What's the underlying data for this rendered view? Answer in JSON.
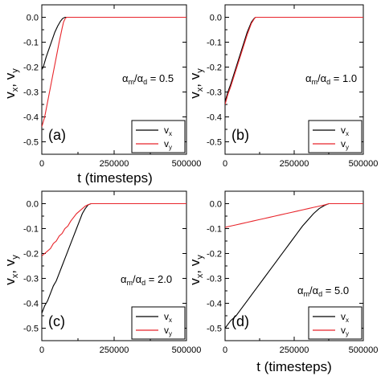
{
  "figure": {
    "xlabel": "t (timesteps)",
    "ylabel_main": "v",
    "ylabel_sub_x": "x",
    "ylabel_sep": ", ",
    "ylabel_sub_y": "y"
  },
  "chart_data": [
    {
      "type": "line",
      "panel_label": "(a)",
      "annotation": {
        "alpha_m": "α",
        "sub_m": "m",
        "slash": "/",
        "alpha_d": "α",
        "sub_d": "d",
        "value": " = 0.5"
      },
      "xlim": [
        0,
        500000
      ],
      "ylim": [
        -0.55,
        0.05
      ],
      "xticks": [
        0,
        250000,
        500000
      ],
      "xtick_labels": [
        "0",
        "250000",
        "500000"
      ],
      "yticks": [
        0.0,
        -0.1,
        -0.2,
        -0.3,
        -0.4,
        -0.5
      ],
      "ytick_labels": [
        "0.0",
        "-0.1",
        "-0.2",
        "-0.3",
        "-0.4",
        "-0.5"
      ],
      "legend": {
        "position": "bottom-right",
        "entries": [
          {
            "name": "v",
            "sub": "x",
            "color": "#000000"
          },
          {
            "name": "v",
            "sub": "y",
            "color": "#e8252b"
          }
        ]
      },
      "series": [
        {
          "name": "vx",
          "color": "#000000",
          "x": [
            0,
            5000,
            15000,
            30000,
            45000,
            55000,
            65000,
            72000,
            80000,
            500000
          ],
          "y": [
            -0.21,
            -0.2,
            -0.16,
            -0.11,
            -0.06,
            -0.035,
            -0.015,
            -0.005,
            0.0,
            0.0
          ]
        },
        {
          "name": "vy",
          "color": "#e8252b",
          "x": [
            0,
            10000,
            20000,
            30000,
            40000,
            50000,
            60000,
            70000,
            75000,
            80000,
            85000,
            500000
          ],
          "y": [
            -0.44,
            -0.4,
            -0.34,
            -0.28,
            -0.22,
            -0.16,
            -0.1,
            -0.045,
            -0.02,
            -0.007,
            0.0,
            0.0
          ]
        }
      ]
    },
    {
      "type": "line",
      "panel_label": "(b)",
      "annotation": {
        "alpha_m": "α",
        "sub_m": "m",
        "slash": "/",
        "alpha_d": "α",
        "sub_d": "d",
        "value": " = 1.0"
      },
      "xlim": [
        0,
        500000
      ],
      "ylim": [
        -0.55,
        0.05
      ],
      "xticks": [
        0,
        250000,
        500000
      ],
      "xtick_labels": [
        "0",
        "250000",
        "500000"
      ],
      "yticks": [
        0.0,
        -0.1,
        -0.2,
        -0.3,
        -0.4,
        -0.5
      ],
      "ytick_labels": [
        "0.0",
        "-0.1",
        "-0.2",
        "-0.3",
        "-0.4",
        "-0.5"
      ],
      "legend": {
        "position": "bottom-right",
        "entries": [
          {
            "name": "v",
            "sub": "x",
            "color": "#000000"
          },
          {
            "name": "v",
            "sub": "y",
            "color": "#e8252b"
          }
        ]
      },
      "series": [
        {
          "name": "vx",
          "color": "#000000",
          "x": [
            0,
            10000,
            20000,
            40000,
            60000,
            80000,
            95000,
            105000,
            110000,
            500000
          ],
          "y": [
            -0.34,
            -0.3,
            -0.27,
            -0.2,
            -0.13,
            -0.06,
            -0.02,
            -0.005,
            0.0,
            0.0
          ]
        },
        {
          "name": "vy",
          "color": "#e8252b",
          "x": [
            0,
            10000,
            20000,
            40000,
            60000,
            80000,
            95000,
            105000,
            110000,
            500000
          ],
          "y": [
            -0.35,
            -0.31,
            -0.28,
            -0.21,
            -0.14,
            -0.07,
            -0.025,
            -0.007,
            0.0,
            0.0
          ]
        }
      ]
    },
    {
      "type": "line",
      "panel_label": "(c)",
      "annotation": {
        "alpha_m": "α",
        "sub_m": "m",
        "slash": "/",
        "alpha_d": "α",
        "sub_d": "d",
        "value": " = 2.0"
      },
      "xlim": [
        0,
        500000
      ],
      "ylim": [
        -0.55,
        0.05
      ],
      "xticks": [
        0,
        250000,
        500000
      ],
      "xtick_labels": [
        "0",
        "250000",
        "500000"
      ],
      "yticks": [
        0.0,
        -0.1,
        -0.2,
        -0.3,
        -0.4,
        -0.5
      ],
      "ytick_labels": [
        "0.0",
        "-0.1",
        "-0.2",
        "-0.3",
        "-0.4",
        "-0.5"
      ],
      "legend": {
        "position": "bottom-right",
        "entries": [
          {
            "name": "v",
            "sub": "x",
            "color": "#000000"
          },
          {
            "name": "v",
            "sub": "y",
            "color": "#e8252b"
          }
        ]
      },
      "series": [
        {
          "name": "vx",
          "color": "#000000",
          "x": [
            0,
            10000,
            20000,
            30000,
            40000,
            50000,
            60000,
            70000,
            80000,
            90000,
            100000,
            110000,
            120000,
            130000,
            140000,
            150000,
            160000,
            170000,
            500000
          ],
          "y": [
            -0.44,
            -0.41,
            -0.39,
            -0.36,
            -0.33,
            -0.31,
            -0.28,
            -0.25,
            -0.22,
            -0.19,
            -0.16,
            -0.13,
            -0.1,
            -0.07,
            -0.04,
            -0.02,
            -0.005,
            0.0,
            0.0
          ]
        },
        {
          "name": "vy",
          "color": "#e8252b",
          "x": [
            0,
            10000,
            20000,
            30000,
            40000,
            50000,
            60000,
            70000,
            80000,
            90000,
            100000,
            110000,
            120000,
            130000,
            140000,
            150000,
            160000,
            170000,
            500000
          ],
          "y": [
            -0.21,
            -0.2,
            -0.19,
            -0.18,
            -0.16,
            -0.15,
            -0.13,
            -0.12,
            -0.1,
            -0.09,
            -0.07,
            -0.055,
            -0.04,
            -0.03,
            -0.02,
            -0.01,
            -0.004,
            0.0,
            0.0
          ]
        }
      ]
    },
    {
      "type": "line",
      "panel_label": "(d)",
      "annotation": {
        "alpha_m": "α",
        "sub_m": "m",
        "slash": "/",
        "alpha_d": "α",
        "sub_d": "d",
        "value": " = 5.0"
      },
      "xlim": [
        0,
        500000
      ],
      "ylim": [
        -0.55,
        0.05
      ],
      "xticks": [
        0,
        250000,
        500000
      ],
      "xtick_labels": [
        "0",
        "250000",
        "500000"
      ],
      "yticks": [
        0.0,
        -0.1,
        -0.2,
        -0.3,
        -0.4,
        -0.5
      ],
      "ytick_labels": [
        "0.0",
        "-0.1",
        "-0.2",
        "-0.3",
        "-0.4",
        "-0.5"
      ],
      "legend": {
        "position": "bottom-right",
        "entries": [
          {
            "name": "v",
            "sub": "x",
            "color": "#000000"
          },
          {
            "name": "v",
            "sub": "y",
            "color": "#e8252b"
          }
        ]
      },
      "series": [
        {
          "name": "vx",
          "color": "#000000",
          "x": [
            0,
            20000,
            40000,
            60000,
            80000,
            100000,
            120000,
            140000,
            160000,
            180000,
            200000,
            220000,
            240000,
            260000,
            280000,
            300000,
            320000,
            340000,
            360000,
            375000,
            500000
          ],
          "y": [
            -0.5,
            -0.47,
            -0.45,
            -0.42,
            -0.39,
            -0.36,
            -0.33,
            -0.3,
            -0.27,
            -0.24,
            -0.21,
            -0.18,
            -0.15,
            -0.12,
            -0.09,
            -0.065,
            -0.04,
            -0.02,
            -0.007,
            0.0,
            0.0
          ]
        },
        {
          "name": "vy",
          "color": "#e8252b",
          "x": [
            0,
            20000,
            40000,
            60000,
            80000,
            100000,
            120000,
            140000,
            160000,
            180000,
            200000,
            220000,
            240000,
            260000,
            280000,
            300000,
            320000,
            340000,
            360000,
            375000,
            500000
          ],
          "y": [
            -0.095,
            -0.09,
            -0.085,
            -0.08,
            -0.075,
            -0.07,
            -0.065,
            -0.06,
            -0.055,
            -0.05,
            -0.045,
            -0.04,
            -0.035,
            -0.03,
            -0.025,
            -0.02,
            -0.015,
            -0.01,
            -0.005,
            0.0,
            0.0
          ]
        }
      ]
    }
  ]
}
